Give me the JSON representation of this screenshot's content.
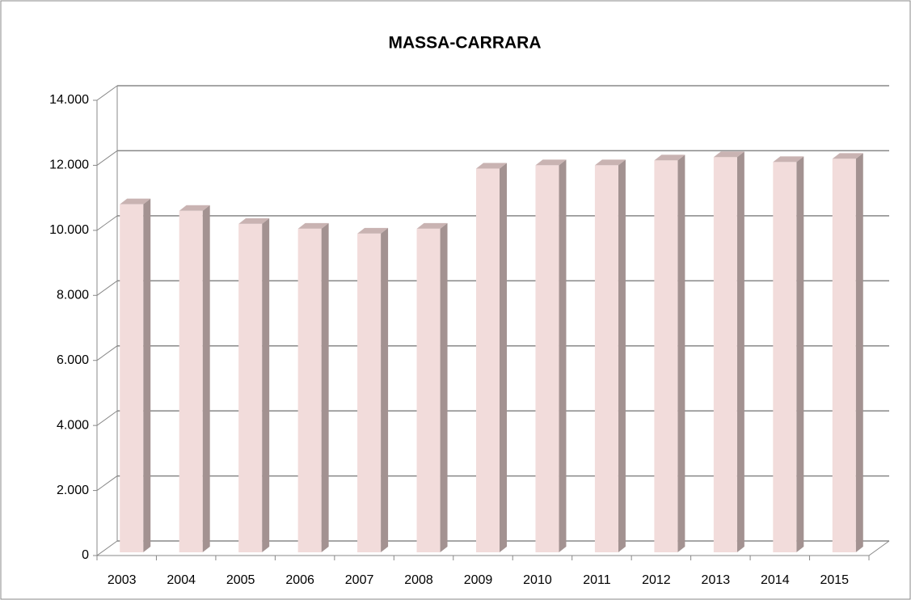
{
  "chart_data": {
    "type": "bar",
    "title": "MASSA-CARRARA",
    "categories": [
      "2003",
      "2004",
      "2005",
      "2006",
      "2007",
      "2008",
      "2009",
      "2010",
      "2011",
      "2012",
      "2013",
      "2014",
      "2015"
    ],
    "values": [
      10800,
      10600,
      10200,
      10050,
      9900,
      10050,
      11900,
      12000,
      12000,
      12150,
      12250,
      12100,
      12200
    ],
    "color": "#f2dcdb",
    "ylim": [
      0,
      14000
    ],
    "yticks": [
      0,
      {
        "value": 2000,
        "label": "2.000"
      },
      {
        "value": 4000,
        "label": "4.000"
      },
      {
        "value": 6000,
        "label": "6.000"
      },
      {
        "value": 8000,
        "label": "8.000"
      },
      {
        "value": 10000,
        "label": "10.000"
      },
      {
        "value": 12000,
        "label": "12.000"
      },
      {
        "value": 14000,
        "label": "14.000"
      }
    ],
    "grid": true
  }
}
